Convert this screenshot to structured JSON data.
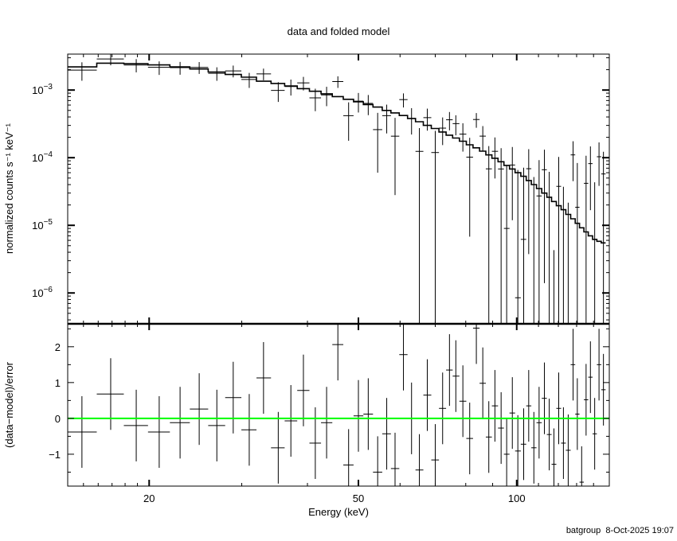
{
  "chart_data": [
    {
      "panel": "top",
      "type": "line",
      "title": "data and folded model",
      "ylabel": "normalized counts s⁻¹ keV⁻¹",
      "xlabel": "",
      "xscale": "log",
      "yscale": "log",
      "xlim": [
        14,
        150
      ],
      "ylim": [
        3.5e-07,
        0.0034
      ],
      "yticks": [
        0.001,
        0.0001,
        1e-05,
        1e-06
      ],
      "ytick_exponents": [
        "−3",
        "−4",
        "−5",
        "−6"
      ],
      "ytick_base": "10",
      "series": [
        {
          "kind": "data with error bars",
          "color": "#000000"
        },
        {
          "kind": "folded model (histogram)",
          "color": "#000000"
        }
      ]
    },
    {
      "panel": "bottom",
      "type": "scatter",
      "xlabel": "Energy (keV)",
      "ylabel": "(data−model)/error",
      "xscale": "log",
      "xlim": [
        14,
        150
      ],
      "ylim": [
        -1.89,
        2.64
      ],
      "xticks": [
        20,
        50,
        100
      ],
      "xtick_labels": [
        "20",
        "50",
        "100"
      ],
      "yticks": [
        2,
        1,
        0,
        -1
      ],
      "ytick_labels": [
        "2",
        "1",
        "0",
        "−1"
      ],
      "zero_line_color": "#00ff00"
    }
  ],
  "bins": {
    "energy": [
      14.9,
      16.9,
      18.9,
      20.9,
      22.9,
      24.9,
      26.9,
      28.9,
      31.0,
      33.0,
      35.2,
      37.2,
      39.3,
      41.4,
      43.5,
      45.7,
      47.9,
      50.0,
      52.2,
      54.4,
      56.6,
      58.7,
      60.9,
      63.1,
      65.3,
      67.6,
      70.0,
      72.3,
      74.5,
      76.6,
      79.0,
      81.4,
      83.8,
      86.2,
      88.5,
      90.9,
      93.4,
      95.7,
      98.1,
      100.5,
      103.1,
      105.4,
      107.8,
      110.3,
      112.9,
      115.3,
      117.7,
      120.2,
      122.7,
      125.3,
      128.0,
      130.4,
      132.9,
      135.5,
      138.1,
      140.7,
      143.4,
      146.2
    ],
    "model": [
      0.0022,
      0.0025,
      0.00245,
      0.00235,
      0.0022,
      0.00205,
      0.00185,
      0.0017,
      0.00155,
      0.00135,
      0.00125,
      0.00115,
      0.00105,
      0.00096,
      0.00088,
      0.0008,
      0.00073,
      0.00067,
      0.00061,
      0.00056,
      0.0005,
      0.00046,
      0.00042,
      0.00038,
      0.00034,
      0.0003,
      0.00027,
      0.00024,
      0.000215,
      0.000195,
      0.000175,
      0.000155,
      0.00014,
      0.000125,
      0.00011,
      9.8e-05,
      8.7e-05,
      7.7e-05,
      6.8e-05,
      6e-05,
      5.3e-05,
      4.6e-05,
      4e-05,
      3.5e-05,
      3e-05,
      2.6e-05,
      2.25e-05,
      1.95e-05,
      1.7e-05,
      1.45e-05,
      1.25e-05,
      1.07e-05,
      9.2e-06,
      8e-06,
      7e-06,
      6.2e-06,
      5.8e-06,
      5.5e-06
    ],
    "error": [
      0.0006,
      0.00056,
      0.00052,
      0.00049,
      0.00046,
      0.00043,
      0.0004,
      0.00038,
      0.00036,
      0.00034,
      0.00032,
      0.0003,
      0.00029,
      0.00028,
      0.00027,
      0.00026,
      0.00024,
      0.00022,
      0.00021,
      0.0002,
      0.00019,
      0.00018,
      0.00017,
      0.00016,
      0.00015,
      0.00014,
      0.00013,
      0.00012,
      0.00011,
      0.000105,
      0.0001,
      9.5e-05,
      9e-05,
      8.5e-05,
      8e-05,
      7.5e-05,
      7e-05,
      6.8e-05,
      6.6e-05,
      6.5e-05,
      6.5e-05,
      6.5e-05,
      6.5e-05,
      6.5e-05,
      6.5e-05,
      6.5e-05,
      6.5e-05,
      6.5e-05,
      6.5e-05,
      6.5e-05,
      6.5e-05,
      6.5e-05,
      6.5e-05,
      6.5e-05,
      6.5e-05,
      6.5e-05,
      6.5e-05,
      6.5e-05
    ],
    "residual": [
      -0.38,
      0.68,
      -0.2,
      -0.38,
      -0.12,
      0.26,
      -0.2,
      0.58,
      -0.32,
      1.13,
      -0.82,
      -0.07,
      0.78,
      -0.69,
      -0.12,
      2.06,
      -1.3,
      0.07,
      0.12,
      -1.5,
      -0.43,
      -1.4,
      1.78,
      0.0,
      -1.44,
      0.65,
      -1.16,
      0.28,
      1.35,
      1.18,
      0.48,
      -0.56,
      2.52,
      0.98,
      -0.52,
      0.35,
      -0.27,
      -1.0,
      0.15,
      -0.91,
      -0.72,
      0.35,
      -0.82,
      -0.12,
      0.56,
      -0.45,
      -1.28,
      0.28,
      -0.69,
      -0.89,
      1.5,
      0.12,
      -1.78,
      0.52,
      1.15,
      -0.43,
      1.5,
      0.8
    ]
  },
  "footer": {
    "user": "batgroup",
    "timestamp": "8-Oct-2025 19:07"
  }
}
